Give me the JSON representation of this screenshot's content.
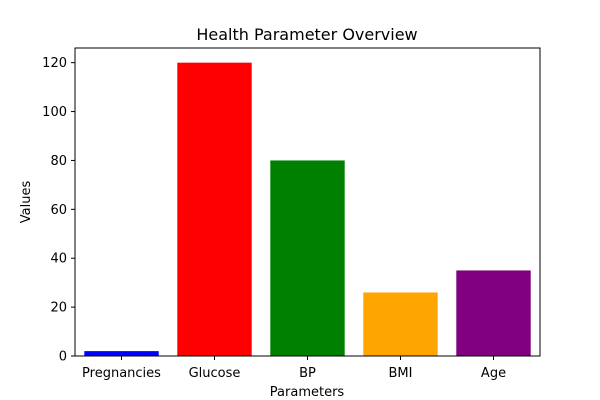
{
  "chart_data": {
    "type": "bar",
    "title": "Health Parameter Overview",
    "xlabel": "Parameters",
    "ylabel": "Values",
    "categories": [
      "Pregnancies",
      "Glucose",
      "BP",
      "BMI",
      "Age"
    ],
    "values": [
      2,
      120,
      80,
      26,
      35
    ],
    "colors": [
      "#0000ff",
      "#ff0000",
      "#008000",
      "#ffa500",
      "#800080"
    ],
    "ylim": [
      0,
      126
    ],
    "yticks": [
      0,
      20,
      40,
      60,
      80,
      100,
      120
    ],
    "grid": false,
    "legend": "none"
  }
}
